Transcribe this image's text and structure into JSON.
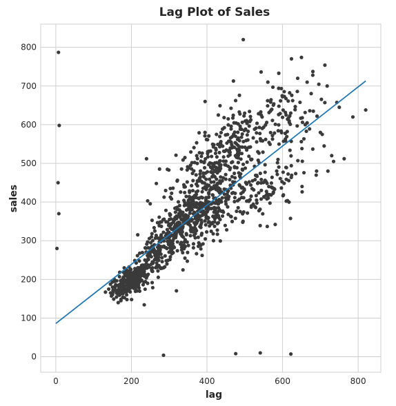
{
  "chart_data": {
    "type": "scatter",
    "title": "Lag Plot of Sales",
    "xlabel": "lag",
    "ylabel": "sales",
    "xlim": [
      -40,
      860
    ],
    "ylim": [
      -40,
      860
    ],
    "xticks": [
      0,
      200,
      400,
      600,
      800
    ],
    "yticks": [
      0,
      100,
      200,
      300,
      400,
      500,
      600,
      700,
      800
    ],
    "grid": true,
    "regression_line": {
      "color": "#1f77b4",
      "x": [
        0,
        820
      ],
      "y": [
        86,
        713
      ]
    },
    "clusters": [
      {
        "cx": 195,
        "cy": 195,
        "sx": 22,
        "sy": 20,
        "n": 260,
        "corr": 0.55
      },
      {
        "cx": 270,
        "cy": 270,
        "sx": 35,
        "sy": 45,
        "n": 170,
        "corr": 0.75
      },
      {
        "cx": 345,
        "cy": 340,
        "sx": 45,
        "sy": 45,
        "n": 230,
        "corr": 0.5
      },
      {
        "cx": 410,
        "cy": 480,
        "sx": 55,
        "sy": 60,
        "n": 230,
        "corr": 0.55
      },
      {
        "cx": 410,
        "cy": 380,
        "sx": 50,
        "sy": 40,
        "n": 180,
        "corr": 0.5
      },
      {
        "cx": 500,
        "cy": 560,
        "sx": 60,
        "sy": 55,
        "n": 140,
        "corr": 0.4
      },
      {
        "cx": 560,
        "cy": 430,
        "sx": 55,
        "sy": 45,
        "n": 110,
        "corr": 0.5
      },
      {
        "cx": 610,
        "cy": 630,
        "sx": 45,
        "sy": 55,
        "n": 60,
        "corr": 0.3
      }
    ],
    "points": [
      {
        "x": 7,
        "y": 787
      },
      {
        "x": 9,
        "y": 598
      },
      {
        "x": 6,
        "y": 450
      },
      {
        "x": 8,
        "y": 370
      },
      {
        "x": 3,
        "y": 280
      },
      {
        "x": 285,
        "y": 4
      },
      {
        "x": 476,
        "y": 8
      },
      {
        "x": 541,
        "y": 10
      },
      {
        "x": 622,
        "y": 7
      },
      {
        "x": 496,
        "y": 820
      },
      {
        "x": 240,
        "y": 512
      },
      {
        "x": 243,
        "y": 403
      },
      {
        "x": 820,
        "y": 638
      },
      {
        "x": 786,
        "y": 620
      },
      {
        "x": 763,
        "y": 512
      },
      {
        "x": 750,
        "y": 645
      },
      {
        "x": 712,
        "y": 754
      },
      {
        "x": 718,
        "y": 700
      },
      {
        "x": 650,
        "y": 774
      },
      {
        "x": 680,
        "y": 728
      },
      {
        "x": 590,
        "y": 733
      },
      {
        "x": 700,
        "y": 580
      },
      {
        "x": 730,
        "y": 520
      },
      {
        "x": 720,
        "y": 480
      },
      {
        "x": 690,
        "y": 480
      },
      {
        "x": 735,
        "y": 505
      },
      {
        "x": 710,
        "y": 545
      },
      {
        "x": 680,
        "y": 537
      },
      {
        "x": 470,
        "y": 713
      },
      {
        "x": 395,
        "y": 660
      },
      {
        "x": 430,
        "y": 625
      },
      {
        "x": 145,
        "y": 165
      },
      {
        "x": 150,
        "y": 180
      },
      {
        "x": 165,
        "y": 140
      },
      {
        "x": 155,
        "y": 200
      },
      {
        "x": 140,
        "y": 175
      },
      {
        "x": 660,
        "y": 600
      },
      {
        "x": 640,
        "y": 720
      },
      {
        "x": 665,
        "y": 710
      },
      {
        "x": 705,
        "y": 575
      }
    ]
  }
}
